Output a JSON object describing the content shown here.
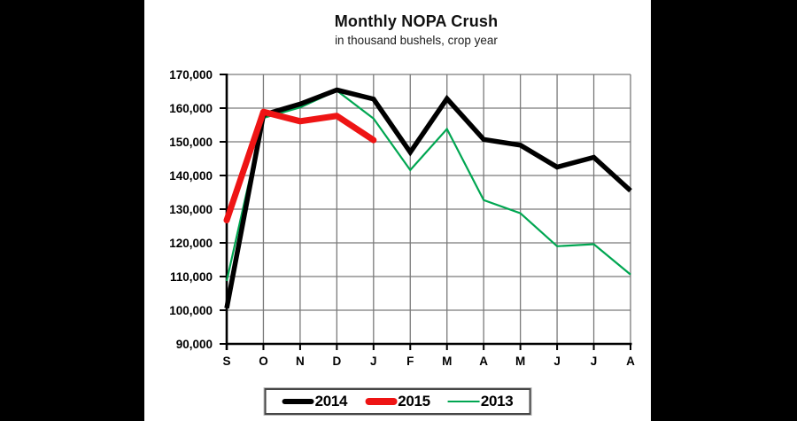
{
  "window": {
    "letterbox_color": "#000000",
    "background_color": "#ffffff"
  },
  "colors": {
    "grid": "#7a7a7a",
    "axis": "#000000",
    "text": "#000000"
  },
  "chart_data": {
    "type": "line",
    "title": "Monthly NOPA Crush",
    "subtitle": "in thousand bushels, crop year",
    "categories": [
      "S",
      "O",
      "N",
      "D",
      "J",
      "F",
      "M",
      "A",
      "M",
      "J",
      "J",
      "A"
    ],
    "ylim": [
      90000,
      170000
    ],
    "ytick_step": 10000,
    "yticks": [
      {
        "value": 170000,
        "label": "170,000"
      },
      {
        "value": 160000,
        "label": "160,000"
      },
      {
        "value": 150000,
        "label": "150,000"
      },
      {
        "value": 140000,
        "label": "140,000"
      },
      {
        "value": 130000,
        "label": "130,000"
      },
      {
        "value": 120000,
        "label": "120,000"
      },
      {
        "value": 110000,
        "label": "110,000"
      },
      {
        "value": 100000,
        "label": "100,000"
      },
      {
        "value": 90000,
        "label": "90,000"
      }
    ],
    "grid": true,
    "legend_position": "bottom",
    "series": [
      {
        "name": "2014",
        "color": "#000000",
        "stroke_width": 5.5,
        "linecap": "butt",
        "values": [
          100600,
          158000,
          161200,
          165400,
          162700,
          146900,
          162800,
          150700,
          149000,
          142500,
          145400,
          135500
        ]
      },
      {
        "name": "2015",
        "color": "#ee1414",
        "stroke_width": 7,
        "linecap": "round",
        "values": [
          126700,
          158900,
          156100,
          157700,
          150500,
          null,
          null,
          null,
          null,
          null,
          null,
          null
        ]
      },
      {
        "name": "2013",
        "color": "#00a651",
        "stroke_width": 2.2,
        "linecap": "butt",
        "values": [
          108700,
          157100,
          160200,
          165200,
          156900,
          141600,
          153800,
          132700,
          128800,
          119000,
          119600,
          110600
        ]
      }
    ]
  }
}
